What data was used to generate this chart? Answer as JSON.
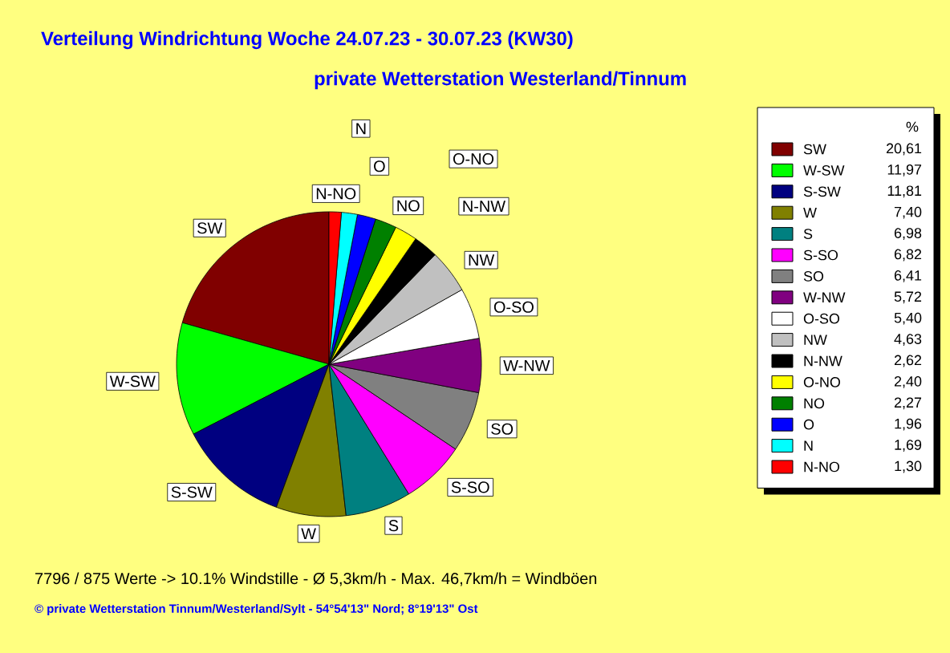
{
  "chart_data": {
    "type": "pie",
    "title": "Verteilung Windrichtung   Woche 24.07.23 - 30.07.23 (KW30)",
    "subtitle": "private Wetterstation Westerland/Tinnum",
    "legend_title": "%",
    "legend": "right",
    "categories": [
      "SW",
      "W-SW",
      "S-SW",
      "W",
      "S",
      "S-SO",
      "SO",
      "W-NW",
      "O-SO",
      "NW",
      "N-NW",
      "O-NO",
      "NO",
      "O",
      "N",
      "N-NO"
    ],
    "values": [
      20.61,
      11.97,
      11.81,
      7.4,
      6.98,
      6.82,
      6.41,
      5.72,
      5.4,
      4.63,
      2.62,
      2.4,
      2.27,
      1.96,
      1.69,
      1.3
    ],
    "value_labels": [
      "20,61",
      "11,97",
      "11,81",
      "7,40",
      "6,98",
      "6,82",
      "6,41",
      "5,72",
      "5,40",
      "4,63",
      "2,62",
      "2,40",
      "2,27",
      "1,96",
      "1,69",
      "1,30"
    ],
    "colors": [
      "#800000",
      "#00ff00",
      "#000080",
      "#808000",
      "#008080",
      "#ff00ff",
      "#808080",
      "#800080",
      "#ffffff",
      "#c0c0c0",
      "#000000",
      "#ffff00",
      "#008000",
      "#0000ff",
      "#00ffff",
      "#ff0000"
    ],
    "annotations": [
      "7796 / 875 Werte  -> 10.1% Windstille   -   Ø 5,3km/h  -  Max. 46,7km/h = Windböen",
      "© private Wetterstation Tinnum/Westerland/Sylt  -  54°54'13\" Nord; 8°19'13\" Ost"
    ]
  }
}
